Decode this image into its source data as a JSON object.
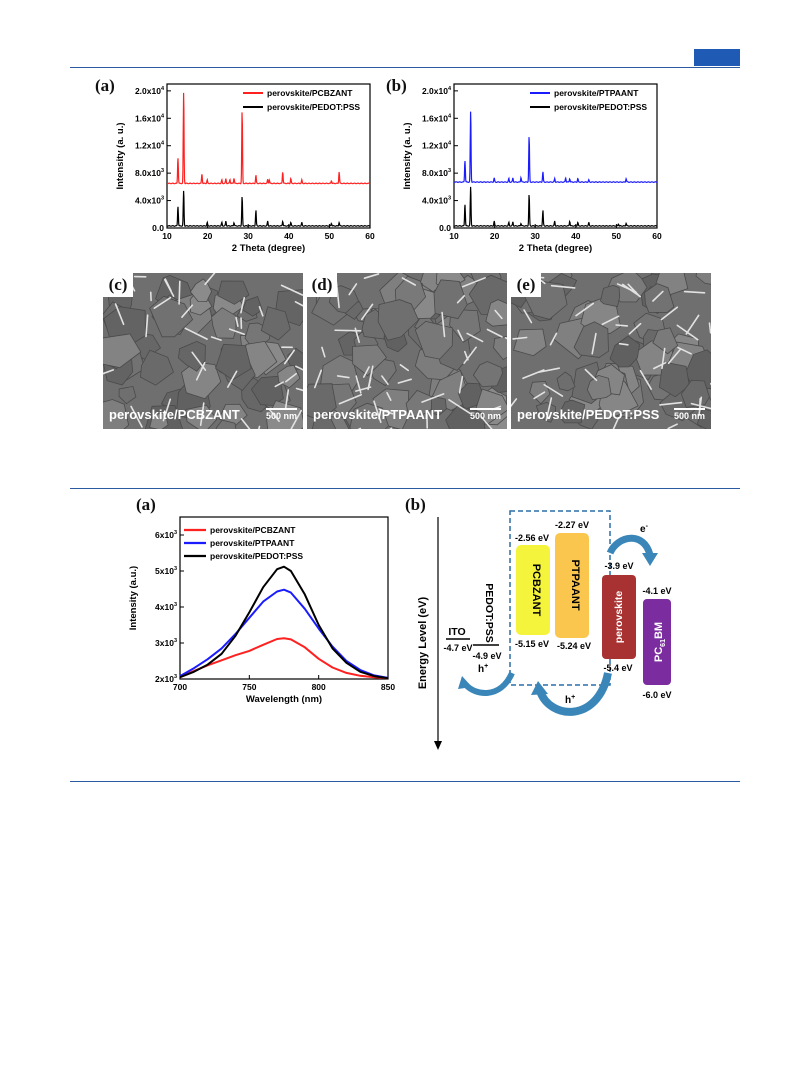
{
  "colors": {
    "accent": "#1f5bb5",
    "red": "#ff2020",
    "blue": "#1b1bff",
    "black": "#000000"
  },
  "figure1": {
    "panel_a": {
      "label": "(a)"
    },
    "panel_b": {
      "label": "(b)"
    },
    "sem": [
      {
        "id": "(c)",
        "label": "perovskite/PCBZANT",
        "scale": "500 nm"
      },
      {
        "id": "(d)",
        "label": "perovskite/PTPAANT",
        "scale": "500 nm"
      },
      {
        "id": "(e)",
        "label": "perovskite/PEDOT:PSS",
        "scale": "500 nm"
      }
    ]
  },
  "figure2": {
    "panel_a": {
      "label": "(a)"
    },
    "panel_b": {
      "label": "(b)"
    },
    "energy": {
      "axis_label": "Energy Level (eV)",
      "ito": {
        "name": "ITO",
        "level": "-4.7 eV"
      },
      "pedot": {
        "name": "PEDOT:PSS",
        "level": "-4.9 eV"
      },
      "pcbzant": {
        "name": "PCBZANT",
        "lumo": "-2.56 eV",
        "homo": "-5.15 eV"
      },
      "ptpaant": {
        "name": "PTPAANT",
        "lumo": "-2.27 eV",
        "homo": "-5.24 eV"
      },
      "perovskite": {
        "name": "perovskite",
        "cb": "-3.9 eV",
        "vb": "-5.4 eV"
      },
      "pcbm": {
        "name_main": "PC",
        "name_sub": "61",
        "name_end": "BM",
        "lumo": "-4.1 eV",
        "homo": "-6.0 eV"
      },
      "electron": "e",
      "electron_sup": "-",
      "hole": "h",
      "hole_sup": "+"
    }
  },
  "chart_data": [
    {
      "type": "line",
      "xlabel": "2 Theta (degree)",
      "ylabel": "Intensity (a. u.)",
      "xlim": [
        10,
        60
      ],
      "ylim": [
        0,
        21000
      ],
      "x_ticks": [
        "10",
        "20",
        "30",
        "40",
        "50",
        "60"
      ],
      "y_ticks": [
        {
          "v": 0,
          "base": "0.0",
          "exp": ""
        },
        {
          "v": 4000,
          "base": "4.0x10",
          "exp": "3"
        },
        {
          "v": 8000,
          "base": "8.0x10",
          "exp": "3"
        },
        {
          "v": 12000,
          "base": "1.2x10",
          "exp": "4"
        },
        {
          "v": 16000,
          "base": "1.6x10",
          "exp": "4"
        },
        {
          "v": 20000,
          "base": "2.0x10",
          "exp": "4"
        }
      ],
      "legend_position": "top-right",
      "series": [
        {
          "name": "perovskite/PCBZANT",
          "color": "#ff2020",
          "baseline": 6500,
          "peaks": [
            [
              12.7,
              3800
            ],
            [
              14.1,
              13500
            ],
            [
              18.6,
              1400
            ],
            [
              19.9,
              500
            ],
            [
              23.5,
              500
            ],
            [
              24.5,
              700
            ],
            [
              25.5,
              600
            ],
            [
              26.5,
              800
            ],
            [
              28.5,
              10600
            ],
            [
              31.9,
              1200
            ],
            [
              34.8,
              600
            ],
            [
              35.2,
              500
            ],
            [
              38.5,
              1700
            ],
            [
              40.5,
              700
            ],
            [
              43.2,
              500
            ],
            [
              50.5,
              400
            ],
            [
              52.4,
              1700
            ]
          ]
        },
        {
          "name": "perovskite/PEDOT:PSS",
          "color": "#000000",
          "baseline": 300,
          "peaks": [
            [
              12.7,
              2900
            ],
            [
              14.1,
              5200
            ],
            [
              19.9,
              500
            ],
            [
              23.5,
              500
            ],
            [
              24.5,
              700
            ],
            [
              26.5,
              500
            ],
            [
              28.5,
              4300
            ],
            [
              31.9,
              2300
            ],
            [
              34.8,
              700
            ],
            [
              38.5,
              700
            ],
            [
              40.5,
              500
            ],
            [
              43.2,
              500
            ],
            [
              50.5,
              400
            ],
            [
              52.4,
              500
            ]
          ]
        }
      ]
    },
    {
      "type": "line",
      "xlabel": "2 Theta (degree)",
      "ylabel": "Intensity (a. u.)",
      "xlim": [
        10,
        60
      ],
      "ylim": [
        0,
        21000
      ],
      "x_ticks": [
        "10",
        "20",
        "30",
        "40",
        "50",
        "60"
      ],
      "y_ticks": [
        {
          "v": 0,
          "base": "0.0",
          "exp": ""
        },
        {
          "v": 4000,
          "base": "4.0x10",
          "exp": "3"
        },
        {
          "v": 8000,
          "base": "8.0x10",
          "exp": "3"
        },
        {
          "v": 12000,
          "base": "1.2x10",
          "exp": "4"
        },
        {
          "v": 16000,
          "base": "1.6x10",
          "exp": "4"
        },
        {
          "v": 20000,
          "base": "2.0x10",
          "exp": "4"
        }
      ],
      "legend_position": "top-right",
      "series": [
        {
          "name": "perovskite/PTPAANT",
          "color": "#1b1bff",
          "baseline": 6700,
          "peaks": [
            [
              12.7,
              3200
            ],
            [
              14.1,
              10500
            ],
            [
              19.9,
              600
            ],
            [
              23.5,
              500
            ],
            [
              24.5,
              600
            ],
            [
              26.5,
              700
            ],
            [
              28.5,
              6700
            ],
            [
              31.9,
              1500
            ],
            [
              34.8,
              500
            ],
            [
              37.5,
              600
            ],
            [
              38.5,
              500
            ],
            [
              40.5,
              500
            ],
            [
              43.2,
              300
            ],
            [
              52.4,
              500
            ]
          ]
        },
        {
          "name": "perovskite/PEDOT:PSS",
          "color": "#000000",
          "baseline": 300,
          "peaks": [
            [
              12.7,
              3200
            ],
            [
              14.1,
              5800
            ],
            [
              19.9,
              700
            ],
            [
              23.5,
              500
            ],
            [
              24.5,
              600
            ],
            [
              26.5,
              400
            ],
            [
              28.5,
              4600
            ],
            [
              31.9,
              2300
            ],
            [
              34.8,
              700
            ],
            [
              38.5,
              700
            ],
            [
              40.5,
              500
            ],
            [
              43.2,
              500
            ],
            [
              50.5,
              300
            ],
            [
              52.4,
              400
            ]
          ]
        }
      ]
    },
    {
      "type": "line",
      "xlabel": "Wavelength (nm)",
      "ylabel": "Intensity (a.u.)",
      "xlim": [
        700,
        850
      ],
      "ylim": [
        2000,
        6500
      ],
      "x_ticks": [
        "700",
        "750",
        "800",
        "850"
      ],
      "y_ticks": [
        {
          "v": 2000,
          "base": "2x10",
          "exp": "3"
        },
        {
          "v": 3000,
          "base": "3x10",
          "exp": "3"
        },
        {
          "v": 4000,
          "base": "4x10",
          "exp": "3"
        },
        {
          "v": 5000,
          "base": "5x10",
          "exp": "3"
        },
        {
          "v": 6000,
          "base": "6x10",
          "exp": "3"
        }
      ],
      "legend_position": "top-left",
      "series": [
        {
          "name": "perovskite/PCBZANT",
          "color": "#ff2020",
          "x": [
            700,
            710,
            720,
            730,
            740,
            750,
            760,
            770,
            775,
            780,
            790,
            800,
            810,
            820,
            830,
            840,
            850
          ],
          "y": [
            2050,
            2220,
            2380,
            2520,
            2660,
            2780,
            2950,
            3110,
            3130,
            3100,
            2880,
            2560,
            2320,
            2170,
            2090,
            2050,
            2020
          ]
        },
        {
          "name": "perovskite/PTPAANT",
          "color": "#1b1bff",
          "x": [
            700,
            710,
            720,
            730,
            740,
            750,
            760,
            770,
            775,
            780,
            790,
            800,
            810,
            820,
            830,
            840,
            850
          ],
          "y": [
            2080,
            2300,
            2550,
            2850,
            3250,
            3700,
            4150,
            4430,
            4480,
            4400,
            3950,
            3400,
            2900,
            2500,
            2250,
            2100,
            2030
          ]
        },
        {
          "name": "perovskite/PEDOT:PSS",
          "color": "#000000",
          "x": [
            700,
            710,
            720,
            730,
            740,
            750,
            760,
            770,
            775,
            780,
            790,
            800,
            810,
            820,
            830,
            840,
            850
          ],
          "y": [
            2050,
            2200,
            2400,
            2700,
            3200,
            3850,
            4550,
            5050,
            5120,
            5000,
            4350,
            3500,
            2850,
            2450,
            2200,
            2080,
            2020
          ]
        }
      ]
    }
  ]
}
